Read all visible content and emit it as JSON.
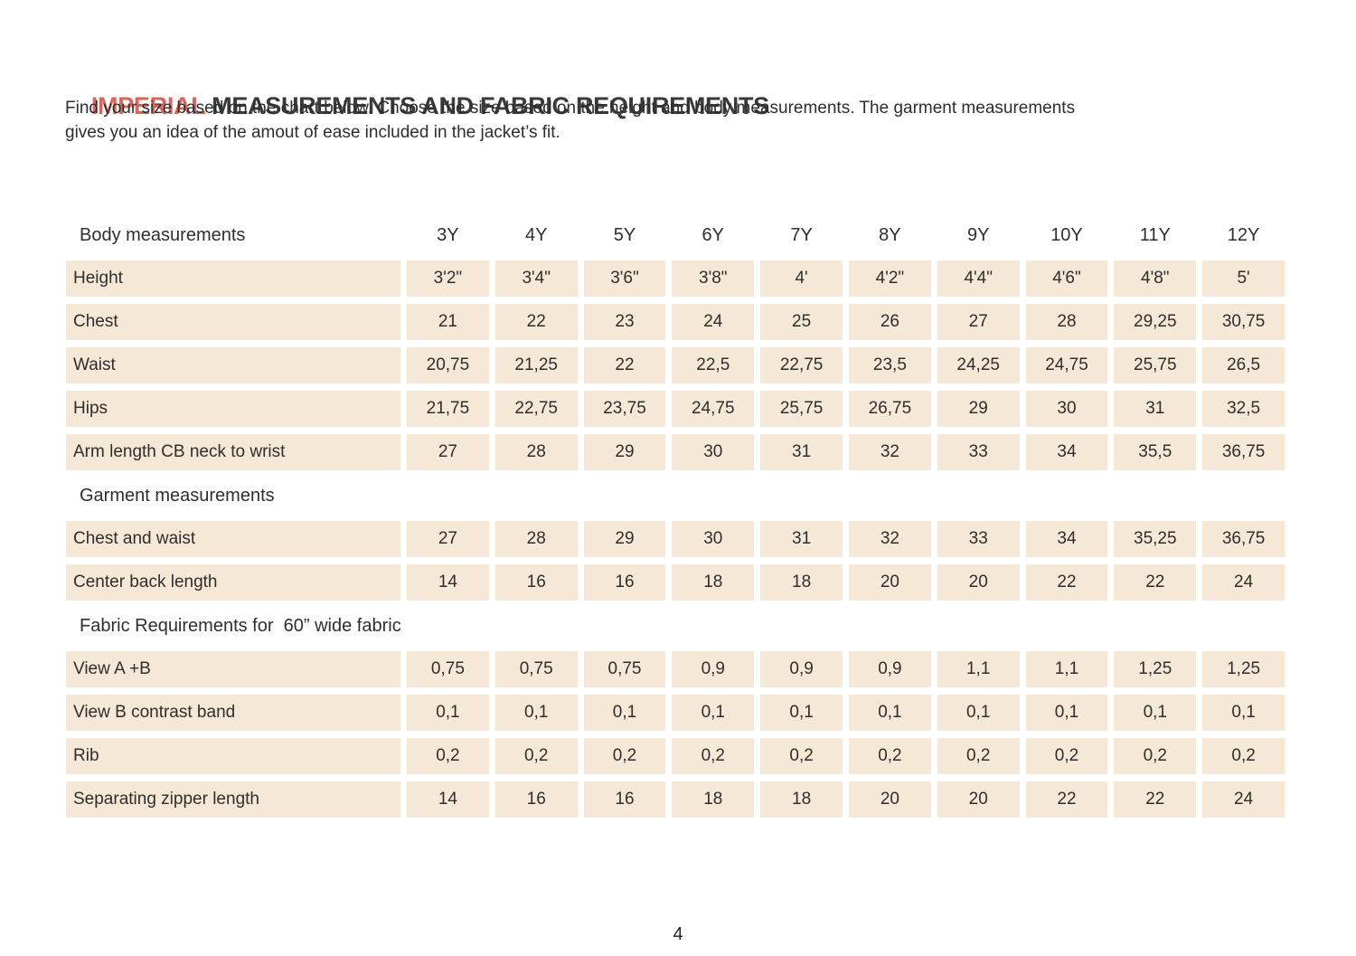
{
  "page": {
    "title_highlight": "IMPERIAL",
    "title_rest": " MEASUREMENTS AND FABRIC REQUIREMENTS",
    "subtitle_line1": "Find your size based on the chart below. Choose the size based on the height and body measurements. The garment measurements",
    "subtitle_line2": "gives you an idea of the amout of ease included in the jacket’s fit.",
    "page_number": "4"
  },
  "colors": {
    "accent": "#d8655b",
    "cell_background": "#f5e8d6",
    "text": "#2d2d2d"
  },
  "table": {
    "sizes": [
      "3Y",
      "4Y",
      "5Y",
      "6Y",
      "7Y",
      "8Y",
      "9Y",
      "10Y",
      "11Y",
      "12Y"
    ],
    "sections": [
      {
        "header": "Body measurements",
        "rows": [
          {
            "label": "Height",
            "values": [
              "3'2\"",
              "3'4\"",
              "3'6\"",
              "3'8\"",
              "4'",
              "4'2\"",
              "4'4\"",
              "4'6\"",
              "4'8\"",
              "5'"
            ]
          },
          {
            "label": "Chest",
            "values": [
              "21",
              "22",
              "23",
              "24",
              "25",
              "26",
              "27",
              "28",
              "29,25",
              "30,75"
            ]
          },
          {
            "label": "Waist",
            "values": [
              "20,75",
              "21,25",
              "22",
              "22,5",
              "22,75",
              "23,5",
              "24,25",
              "24,75",
              "25,75",
              "26,5"
            ]
          },
          {
            "label": "Hips",
            "values": [
              "21,75",
              "22,75",
              "23,75",
              "24,75",
              "25,75",
              "26,75",
              "29",
              "30",
              "31",
              "32,5"
            ]
          },
          {
            "label": "Arm length CB neck to wrist",
            "values": [
              "27",
              "28",
              "29",
              "30",
              "31",
              "32",
              "33",
              "34",
              "35,5",
              "36,75"
            ]
          }
        ]
      },
      {
        "header": "Garment measurements",
        "rows": [
          {
            "label": "Chest and waist",
            "values": [
              "27",
              "28",
              "29",
              "30",
              "31",
              "32",
              "33",
              "34",
              "35,25",
              "36,75"
            ]
          },
          {
            "label": "Center back length",
            "values": [
              "14",
              "16",
              "16",
              "18",
              "18",
              "20",
              "20",
              "22",
              "22",
              "24"
            ]
          }
        ]
      },
      {
        "header": "Fabric Requirements for  60” wide fabric",
        "rows": [
          {
            "label": "View A +B",
            "values": [
              "0,75",
              "0,75",
              "0,75",
              "0,9",
              "0,9",
              "0,9",
              "1,1",
              "1,1",
              "1,25",
              "1,25"
            ]
          },
          {
            "label": "View B contrast band",
            "values": [
              "0,1",
              "0,1",
              "0,1",
              "0,1",
              "0,1",
              "0,1",
              "0,1",
              "0,1",
              "0,1",
              "0,1"
            ]
          },
          {
            "label": "Rib",
            "values": [
              "0,2",
              "0,2",
              "0,2",
              "0,2",
              "0,2",
              "0,2",
              "0,2",
              "0,2",
              "0,2",
              "0,2"
            ]
          },
          {
            "label": "Separating zipper length",
            "values": [
              "14",
              "16",
              "16",
              "18",
              "18",
              "20",
              "20",
              "22",
              "22",
              "24"
            ]
          }
        ]
      }
    ]
  }
}
